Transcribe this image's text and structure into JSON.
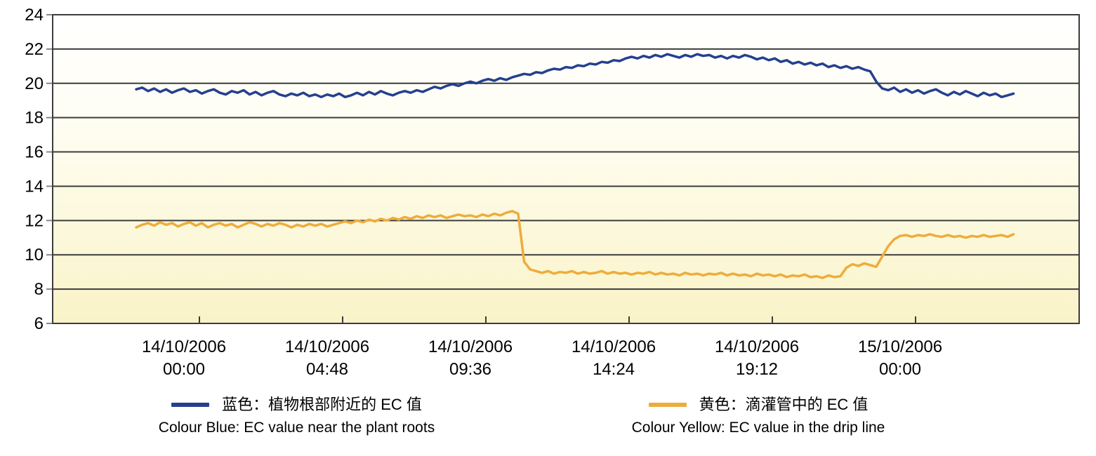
{
  "chart_data": {
    "type": "line",
    "title": "",
    "grid": "horizontal",
    "legend_position": "bottom",
    "colors": {
      "grid_line": "#3C3C3C",
      "axis_tick": "#888888",
      "plot_bg_top": "#FFFFFF",
      "plot_bg_bottom": "#FAF3C8"
    },
    "y_axis": {
      "min": 6,
      "max": 24,
      "step": 2,
      "ticks": [
        24,
        22,
        20,
        18,
        16,
        14,
        12,
        10,
        8,
        6
      ]
    },
    "x_axis": {
      "unit": "hours from 14/10/2006 00:00",
      "tick_labels": [
        {
          "line1": "14/10/2006",
          "line2": "00:00"
        },
        {
          "line1": "14/10/2006",
          "line2": "04:48"
        },
        {
          "line1": "14/10/2006",
          "line2": "09:36"
        },
        {
          "line1": "14/10/2006",
          "line2": "14:24"
        },
        {
          "line1": "14/10/2006",
          "line2": "19:12"
        },
        {
          "line1": "15/10/2006",
          "line2": "00:00"
        }
      ],
      "tick_hours": [
        0,
        4.8,
        9.6,
        14.4,
        19.2,
        24
      ]
    },
    "series": [
      {
        "name_cn": "蓝色：植物根部附近的 EC 值",
        "name_en": "Colour Blue: EC value near the plant roots",
        "color": "#24408F",
        "x0": -1.6,
        "dx": 0.2,
        "values": [
          19.65,
          19.75,
          19.55,
          19.7,
          19.5,
          19.65,
          19.45,
          19.6,
          19.7,
          19.5,
          19.6,
          19.4,
          19.55,
          19.65,
          19.45,
          19.35,
          19.55,
          19.45,
          19.6,
          19.35,
          19.5,
          19.3,
          19.45,
          19.55,
          19.35,
          19.25,
          19.4,
          19.3,
          19.45,
          19.25,
          19.35,
          19.2,
          19.35,
          19.25,
          19.4,
          19.2,
          19.3,
          19.45,
          19.3,
          19.5,
          19.35,
          19.55,
          19.4,
          19.3,
          19.45,
          19.55,
          19.45,
          19.6,
          19.5,
          19.65,
          19.8,
          19.7,
          19.85,
          19.95,
          19.85,
          20.0,
          20.1,
          20.0,
          20.15,
          20.25,
          20.15,
          20.3,
          20.2,
          20.35,
          20.45,
          20.55,
          20.5,
          20.65,
          20.6,
          20.75,
          20.85,
          20.8,
          20.95,
          20.9,
          21.05,
          21.0,
          21.15,
          21.1,
          21.25,
          21.2,
          21.35,
          21.3,
          21.45,
          21.55,
          21.45,
          21.6,
          21.5,
          21.65,
          21.55,
          21.7,
          21.6,
          21.5,
          21.65,
          21.55,
          21.7,
          21.6,
          21.65,
          21.5,
          21.6,
          21.45,
          21.6,
          21.5,
          21.65,
          21.55,
          21.4,
          21.5,
          21.35,
          21.45,
          21.25,
          21.35,
          21.15,
          21.25,
          21.1,
          21.2,
          21.05,
          21.15,
          20.95,
          21.05,
          20.9,
          21.0,
          20.85,
          20.95,
          20.8,
          20.7,
          20.1,
          19.7,
          19.6,
          19.75,
          19.5,
          19.65,
          19.45,
          19.6,
          19.4,
          19.55,
          19.65,
          19.45,
          19.3,
          19.5,
          19.35,
          19.55,
          19.4,
          19.25,
          19.45,
          19.3,
          19.4,
          19.2,
          19.3,
          19.4
        ]
      },
      {
        "name_cn": "黄色：滴灌管中的 EC 值",
        "name_en": "Colour Yellow: EC value in the drip line",
        "color": "#EEAC3C",
        "x0": -1.6,
        "dx": 0.2,
        "values": [
          11.6,
          11.75,
          11.85,
          11.7,
          11.9,
          11.75,
          11.85,
          11.65,
          11.8,
          11.9,
          11.7,
          11.85,
          11.6,
          11.75,
          11.85,
          11.7,
          11.8,
          11.6,
          11.75,
          11.9,
          11.8,
          11.65,
          11.8,
          11.7,
          11.85,
          11.75,
          11.6,
          11.75,
          11.65,
          11.8,
          11.7,
          11.8,
          11.65,
          11.75,
          11.85,
          11.95,
          11.85,
          12.0,
          11.9,
          12.05,
          11.95,
          12.1,
          12.0,
          12.15,
          12.05,
          12.2,
          12.1,
          12.25,
          12.15,
          12.3,
          12.2,
          12.3,
          12.15,
          12.25,
          12.35,
          12.25,
          12.3,
          12.2,
          12.35,
          12.25,
          12.4,
          12.3,
          12.45,
          12.55,
          12.4,
          9.6,
          9.15,
          9.05,
          8.95,
          9.05,
          8.9,
          9.0,
          8.95,
          9.05,
          8.9,
          9.0,
          8.9,
          8.95,
          9.05,
          8.9,
          9.0,
          8.9,
          8.95,
          8.85,
          8.95,
          8.9,
          9.0,
          8.85,
          8.95,
          8.85,
          8.9,
          8.8,
          8.95,
          8.85,
          8.9,
          8.8,
          8.9,
          8.85,
          8.95,
          8.8,
          8.9,
          8.8,
          8.85,
          8.75,
          8.9,
          8.8,
          8.85,
          8.75,
          8.85,
          8.7,
          8.8,
          8.75,
          8.85,
          8.7,
          8.75,
          8.65,
          8.8,
          8.7,
          8.75,
          9.25,
          9.45,
          9.35,
          9.5,
          9.4,
          9.3,
          9.9,
          10.5,
          10.9,
          11.1,
          11.15,
          11.05,
          11.15,
          11.1,
          11.2,
          11.1,
          11.05,
          11.15,
          11.05,
          11.1,
          11.0,
          11.1,
          11.05,
          11.15,
          11.05,
          11.1,
          11.15,
          11.05,
          11.2
        ]
      }
    ]
  },
  "legend": {
    "blue_cn": "蓝色：植物根部附近的 EC 值",
    "blue_en": "Colour Blue: EC value near the plant roots",
    "yellow_cn": "黄色：滴灌管中的 EC 值",
    "yellow_en": "Colour Yellow: EC value in the drip line"
  }
}
